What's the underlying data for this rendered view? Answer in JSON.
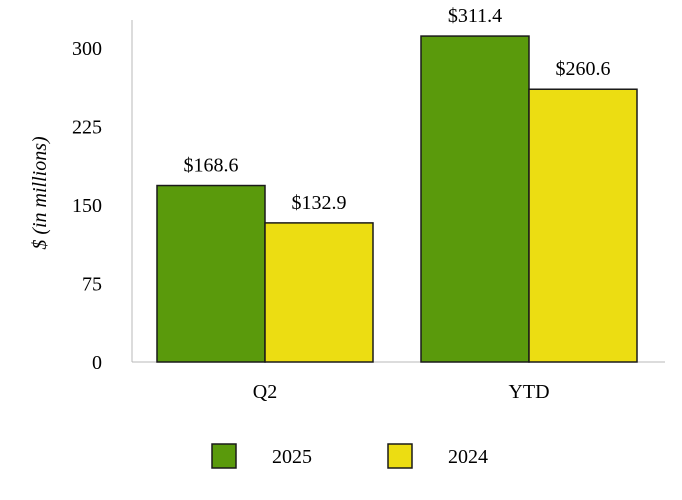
{
  "chart_data": {
    "type": "bar",
    "categories": [
      "Q2",
      "YTD"
    ],
    "series": [
      {
        "name": "2025",
        "values": [
          168.6,
          311.4
        ],
        "labels": [
          "$168.6",
          "$311.4"
        ],
        "color": "#5a9a0c"
      },
      {
        "name": "2024",
        "values": [
          132.9,
          260.6
        ],
        "labels": [
          "$132.9",
          "$260.6"
        ],
        "color": "#ecdd12"
      }
    ],
    "title": "",
    "xlabel": "",
    "ylabel": "$ (in millions)",
    "ylim": [
      0,
      300
    ],
    "yticks": [
      "0",
      "75",
      "150",
      "225",
      "300"
    ],
    "grid": false,
    "legend_position": "bottom"
  }
}
